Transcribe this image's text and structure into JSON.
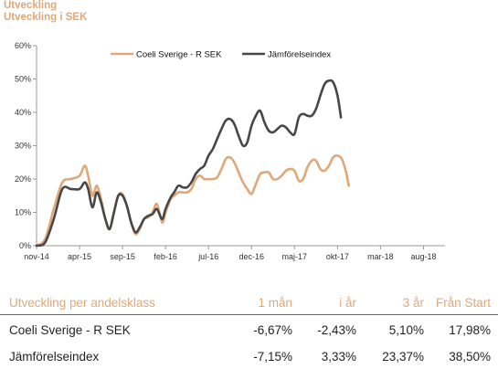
{
  "titles": {
    "line1": "Utveckling",
    "line2": "Utveckling i SEK"
  },
  "colors": {
    "fund": "#e0a878",
    "index": "#474747",
    "accent": "#e0a878"
  },
  "chart_data": {
    "type": "line",
    "ylim": [
      0,
      60
    ],
    "yticks": [
      0,
      10,
      20,
      30,
      40,
      50,
      60
    ],
    "ytick_suffix": "%",
    "grid": false,
    "legend": "top",
    "xticks": [
      {
        "x": 0,
        "label": "nov-14"
      },
      {
        "x": 5,
        "label": "apr-15"
      },
      {
        "x": 10,
        "label": "sep-15"
      },
      {
        "x": 15,
        "label": "feb-16"
      },
      {
        "x": 20,
        "label": "jul-16"
      },
      {
        "x": 25,
        "label": "dec-16"
      },
      {
        "x": 30,
        "label": "maj-17"
      },
      {
        "x": 35,
        "label": "okt-17"
      },
      {
        "x": 40,
        "label": "mar-18"
      },
      {
        "x": 45,
        "label": "aug-18"
      }
    ],
    "series": [
      {
        "name": "Coeli Sverige - R SEK",
        "color": "#e0a878",
        "values": [
          [
            0,
            0
          ],
          [
            1,
            2
          ],
          [
            2,
            11
          ],
          [
            3,
            19
          ],
          [
            4,
            20
          ],
          [
            5,
            21
          ],
          [
            5.6,
            24
          ],
          [
            6,
            21
          ],
          [
            6.5,
            15
          ],
          [
            7,
            18
          ],
          [
            7.5,
            14
          ],
          [
            8,
            8
          ],
          [
            8.5,
            5
          ],
          [
            9,
            10
          ],
          [
            9.5,
            15
          ],
          [
            10,
            15.5
          ],
          [
            10.5,
            12
          ],
          [
            11,
            7
          ],
          [
            11.5,
            3.5
          ],
          [
            12,
            5
          ],
          [
            12.5,
            8
          ],
          [
            13,
            8.5
          ],
          [
            13.5,
            10
          ],
          [
            14,
            12.5
          ],
          [
            14.6,
            7
          ],
          [
            15,
            10
          ],
          [
            15.6,
            14
          ],
          [
            16,
            15
          ],
          [
            16.5,
            16
          ],
          [
            17,
            16
          ],
          [
            17.5,
            16
          ],
          [
            18,
            17
          ],
          [
            18.5,
            20
          ],
          [
            19,
            21
          ],
          [
            19.5,
            20
          ],
          [
            20,
            20
          ],
          [
            20.5,
            20
          ],
          [
            21,
            20.5
          ],
          [
            21.5,
            23
          ],
          [
            22,
            26
          ],
          [
            22.5,
            26.5
          ],
          [
            23,
            25
          ],
          [
            23.5,
            22
          ],
          [
            24,
            19
          ],
          [
            24.5,
            17
          ],
          [
            25,
            15.5
          ],
          [
            25.5,
            18.5
          ],
          [
            26,
            21.5
          ],
          [
            26.5,
            22
          ],
          [
            27,
            22
          ],
          [
            27.5,
            20
          ],
          [
            28,
            20
          ],
          [
            28.5,
            21
          ],
          [
            29,
            22.5
          ],
          [
            29.5,
            23
          ],
          [
            30,
            22.5
          ],
          [
            30.5,
            19.5
          ],
          [
            31,
            20
          ],
          [
            31.5,
            23.5
          ],
          [
            32,
            25.5
          ],
          [
            32.5,
            25.5
          ],
          [
            33,
            23
          ],
          [
            33.5,
            22.5
          ],
          [
            34,
            24
          ],
          [
            34.5,
            26.5
          ],
          [
            35,
            27
          ],
          [
            35.5,
            26
          ],
          [
            36,
            22
          ],
          [
            36.3,
            18
          ]
        ]
      },
      {
        "name": "Jämförelseindex",
        "color": "#474747",
        "values": [
          [
            0,
            0
          ],
          [
            1,
            1
          ],
          [
            2,
            8
          ],
          [
            3,
            17
          ],
          [
            4,
            17
          ],
          [
            5,
            17
          ],
          [
            5.6,
            19
          ],
          [
            6,
            17
          ],
          [
            6.5,
            11.5
          ],
          [
            7,
            16
          ],
          [
            7.5,
            13
          ],
          [
            8,
            8
          ],
          [
            8.5,
            5
          ],
          [
            9,
            10
          ],
          [
            9.5,
            15
          ],
          [
            10,
            15
          ],
          [
            10.5,
            12
          ],
          [
            11,
            7
          ],
          [
            11.5,
            4
          ],
          [
            12,
            5.5
          ],
          [
            12.5,
            8
          ],
          [
            13,
            9
          ],
          [
            13.5,
            9.5
          ],
          [
            14,
            11
          ],
          [
            14.6,
            8
          ],
          [
            15,
            11
          ],
          [
            15.6,
            14.5
          ],
          [
            16,
            16
          ],
          [
            16.5,
            18
          ],
          [
            17,
            17.5
          ],
          [
            17.5,
            17.5
          ],
          [
            18,
            19
          ],
          [
            18.5,
            21.5
          ],
          [
            19,
            23
          ],
          [
            19.5,
            24
          ],
          [
            20,
            27
          ],
          [
            20.5,
            29
          ],
          [
            21,
            32
          ],
          [
            21.5,
            35
          ],
          [
            22,
            37.5
          ],
          [
            22.5,
            38
          ],
          [
            23,
            36.5
          ],
          [
            23.5,
            33
          ],
          [
            24,
            30
          ],
          [
            24.5,
            31
          ],
          [
            25,
            36
          ],
          [
            25.5,
            39
          ],
          [
            26,
            40.5
          ],
          [
            26.5,
            37
          ],
          [
            27,
            34.5
          ],
          [
            27.5,
            34
          ],
          [
            28,
            35
          ],
          [
            28.5,
            36
          ],
          [
            29,
            35.5
          ],
          [
            29.5,
            34
          ],
          [
            30,
            33.5
          ],
          [
            30.5,
            38.5
          ],
          [
            31,
            39.5
          ],
          [
            31.5,
            39
          ],
          [
            32,
            39
          ],
          [
            32.5,
            41
          ],
          [
            33,
            45
          ],
          [
            33.5,
            48.5
          ],
          [
            34,
            49.5
          ],
          [
            34.5,
            49
          ],
          [
            35,
            45
          ],
          [
            35.4,
            38.5
          ]
        ]
      }
    ]
  },
  "table": {
    "headers": [
      "Utveckling per andelsklass",
      "1 mån",
      "i år",
      "3 år",
      "Från Start"
    ],
    "rows": [
      {
        "name": "Coeli Sverige - R SEK",
        "m1": "-6,67%",
        "ytd": "-2,43%",
        "y3": "5,10%",
        "start": "17,98%"
      },
      {
        "name": "Jämförelseindex",
        "m1": "-7,15%",
        "ytd": "3,33%",
        "y3": "23,37%",
        "start": "38,50%"
      }
    ]
  }
}
